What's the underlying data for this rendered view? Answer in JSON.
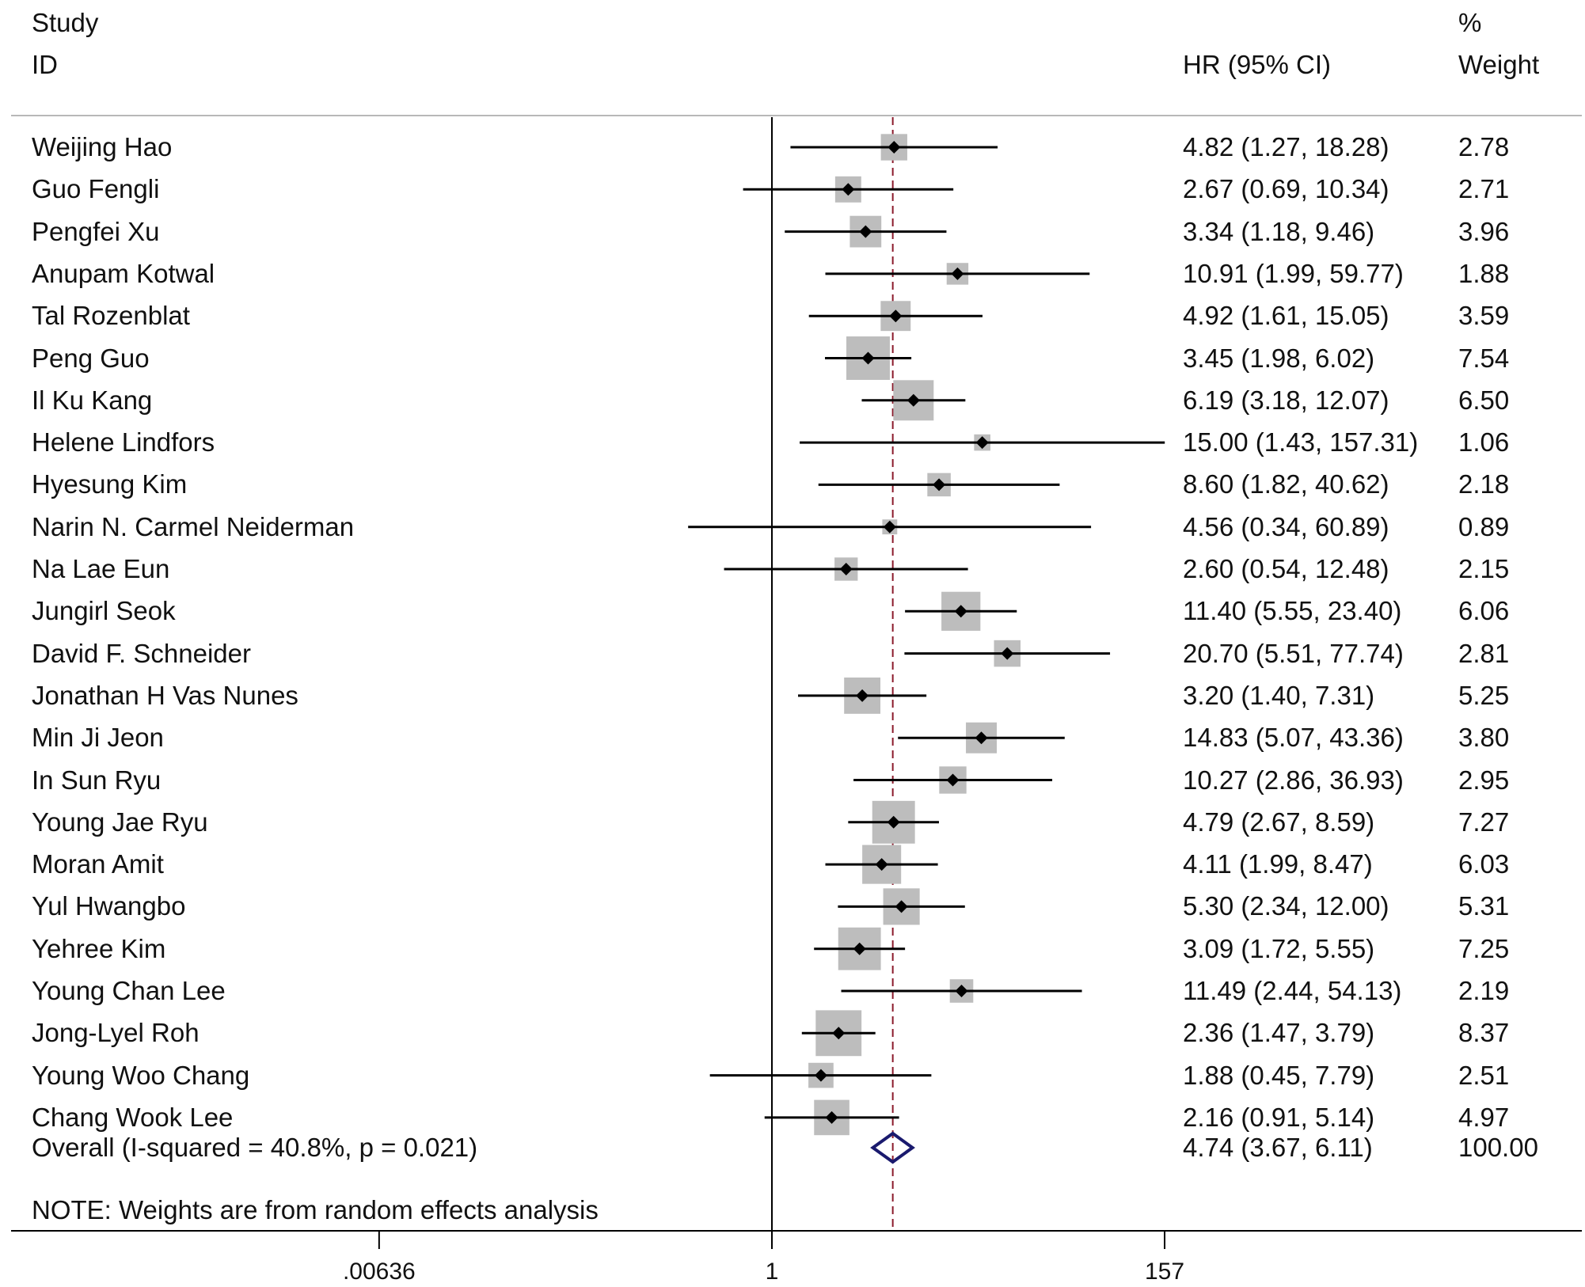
{
  "header": {
    "study_line1": "Study",
    "study_line2": "ID",
    "hr_label": "HR (95% CI)",
    "weight_line1": "%",
    "weight_line2": "Weight"
  },
  "chart_data": {
    "type": "forest",
    "scale": "log",
    "axis_ticks": [
      {
        "value": 0.00636,
        "label": ".00636"
      },
      {
        "value": 1,
        "label": "1"
      },
      {
        "value": 157,
        "label": "157"
      }
    ],
    "null_line": 1,
    "pooled_line": 4.74,
    "studies": [
      {
        "id": "Weijing Hao",
        "hr": 4.82,
        "lo": 1.27,
        "hi": 18.28,
        "ci_text": "4.82 (1.27, 18.28)",
        "weight": 2.78,
        "weight_text": "2.78"
      },
      {
        "id": "Guo Fengli",
        "hr": 2.67,
        "lo": 0.69,
        "hi": 10.34,
        "ci_text": "2.67 (0.69, 10.34)",
        "weight": 2.71,
        "weight_text": "2.71"
      },
      {
        "id": "Pengfei Xu",
        "hr": 3.34,
        "lo": 1.18,
        "hi": 9.46,
        "ci_text": "3.34 (1.18, 9.46)",
        "weight": 3.96,
        "weight_text": "3.96"
      },
      {
        "id": "Anupam Kotwal",
        "hr": 10.91,
        "lo": 1.99,
        "hi": 59.77,
        "ci_text": "10.91 (1.99, 59.77)",
        "weight": 1.88,
        "weight_text": "1.88"
      },
      {
        "id": "Tal Rozenblat",
        "hr": 4.92,
        "lo": 1.61,
        "hi": 15.05,
        "ci_text": "4.92 (1.61, 15.05)",
        "weight": 3.59,
        "weight_text": "3.59"
      },
      {
        "id": "Peng Guo",
        "hr": 3.45,
        "lo": 1.98,
        "hi": 6.02,
        "ci_text": "3.45 (1.98, 6.02)",
        "weight": 7.54,
        "weight_text": "7.54"
      },
      {
        "id": "Il Ku Kang",
        "hr": 6.19,
        "lo": 3.18,
        "hi": 12.07,
        "ci_text": "6.19 (3.18, 12.07)",
        "weight": 6.5,
        "weight_text": "6.50"
      },
      {
        "id": "Helene Lindfors",
        "hr": 15.0,
        "lo": 1.43,
        "hi": 157.31,
        "ci_text": "15.00 (1.43, 157.31)",
        "weight": 1.06,
        "weight_text": "1.06"
      },
      {
        "id": "Hyesung Kim",
        "hr": 8.6,
        "lo": 1.82,
        "hi": 40.62,
        "ci_text": "8.60 (1.82, 40.62)",
        "weight": 2.18,
        "weight_text": "2.18"
      },
      {
        "id": "Narin N. Carmel Neiderman",
        "hr": 4.56,
        "lo": 0.34,
        "hi": 60.89,
        "ci_text": "4.56 (0.34, 60.89)",
        "weight": 0.89,
        "weight_text": "0.89"
      },
      {
        "id": "Na Lae Eun",
        "hr": 2.6,
        "lo": 0.54,
        "hi": 12.48,
        "ci_text": "2.60 (0.54, 12.48)",
        "weight": 2.15,
        "weight_text": "2.15"
      },
      {
        "id": "Jungirl Seok",
        "hr": 11.4,
        "lo": 5.55,
        "hi": 23.4,
        "ci_text": "11.40 (5.55, 23.40)",
        "weight": 6.06,
        "weight_text": "6.06"
      },
      {
        "id": "David F. Schneider",
        "hr": 20.7,
        "lo": 5.51,
        "hi": 77.74,
        "ci_text": "20.70 (5.51, 77.74)",
        "weight": 2.81,
        "weight_text": "2.81"
      },
      {
        "id": "Jonathan H Vas Nunes",
        "hr": 3.2,
        "lo": 1.4,
        "hi": 7.31,
        "ci_text": "3.20 (1.40, 7.31)",
        "weight": 5.25,
        "weight_text": "5.25"
      },
      {
        "id": "Min Ji Jeon",
        "hr": 14.83,
        "lo": 5.07,
        "hi": 43.36,
        "ci_text": "14.83 (5.07, 43.36)",
        "weight": 3.8,
        "weight_text": "3.80"
      },
      {
        "id": "In Sun Ryu",
        "hr": 10.27,
        "lo": 2.86,
        "hi": 36.93,
        "ci_text": "10.27 (2.86, 36.93)",
        "weight": 2.95,
        "weight_text": "2.95"
      },
      {
        "id": "Young Jae Ryu",
        "hr": 4.79,
        "lo": 2.67,
        "hi": 8.59,
        "ci_text": "4.79 (2.67, 8.59)",
        "weight": 7.27,
        "weight_text": "7.27"
      },
      {
        "id": "Moran Amit",
        "hr": 4.11,
        "lo": 1.99,
        "hi": 8.47,
        "ci_text": "4.11 (1.99, 8.47)",
        "weight": 6.03,
        "weight_text": "6.03"
      },
      {
        "id": "Yul Hwangbo",
        "hr": 5.3,
        "lo": 2.34,
        "hi": 12.0,
        "ci_text": "5.30 (2.34, 12.00)",
        "weight": 5.31,
        "weight_text": "5.31"
      },
      {
        "id": "Yehree Kim",
        "hr": 3.09,
        "lo": 1.72,
        "hi": 5.55,
        "ci_text": "3.09 (1.72, 5.55)",
        "weight": 7.25,
        "weight_text": "7.25"
      },
      {
        "id": "Young Chan Lee",
        "hr": 11.49,
        "lo": 2.44,
        "hi": 54.13,
        "ci_text": "11.49 (2.44, 54.13)",
        "weight": 2.19,
        "weight_text": "2.19"
      },
      {
        "id": "Jong-Lyel Roh",
        "hr": 2.36,
        "lo": 1.47,
        "hi": 3.79,
        "ci_text": "2.36 (1.47, 3.79)",
        "weight": 8.37,
        "weight_text": "8.37"
      },
      {
        "id": "Young Woo Chang",
        "hr": 1.88,
        "lo": 0.45,
        "hi": 7.79,
        "ci_text": "1.88 (0.45, 7.79)",
        "weight": 2.51,
        "weight_text": "2.51"
      },
      {
        "id": "Chang Wook Lee",
        "hr": 2.16,
        "lo": 0.91,
        "hi": 5.14,
        "ci_text": "2.16 (0.91, 5.14)",
        "weight": 4.97,
        "weight_text": "4.97"
      }
    ],
    "overall": {
      "label": "Overall  (I-squared = 40.8%, p = 0.021)",
      "hr": 4.74,
      "lo": 3.67,
      "hi": 6.11,
      "ci_text": "4.74 (3.67, 6.11)",
      "weight_text": "100.00",
      "i_squared_percent": 40.8,
      "p_value": 0.021
    },
    "note": "NOTE: Weights are from random effects analysis"
  },
  "colors": {
    "box": "#bdbdbd",
    "point": "#000000",
    "ci_line": "#000000",
    "pooled_line": "#8b1a2b",
    "diamond": "#1a1a6e",
    "rule": "#b8b8b8"
  }
}
